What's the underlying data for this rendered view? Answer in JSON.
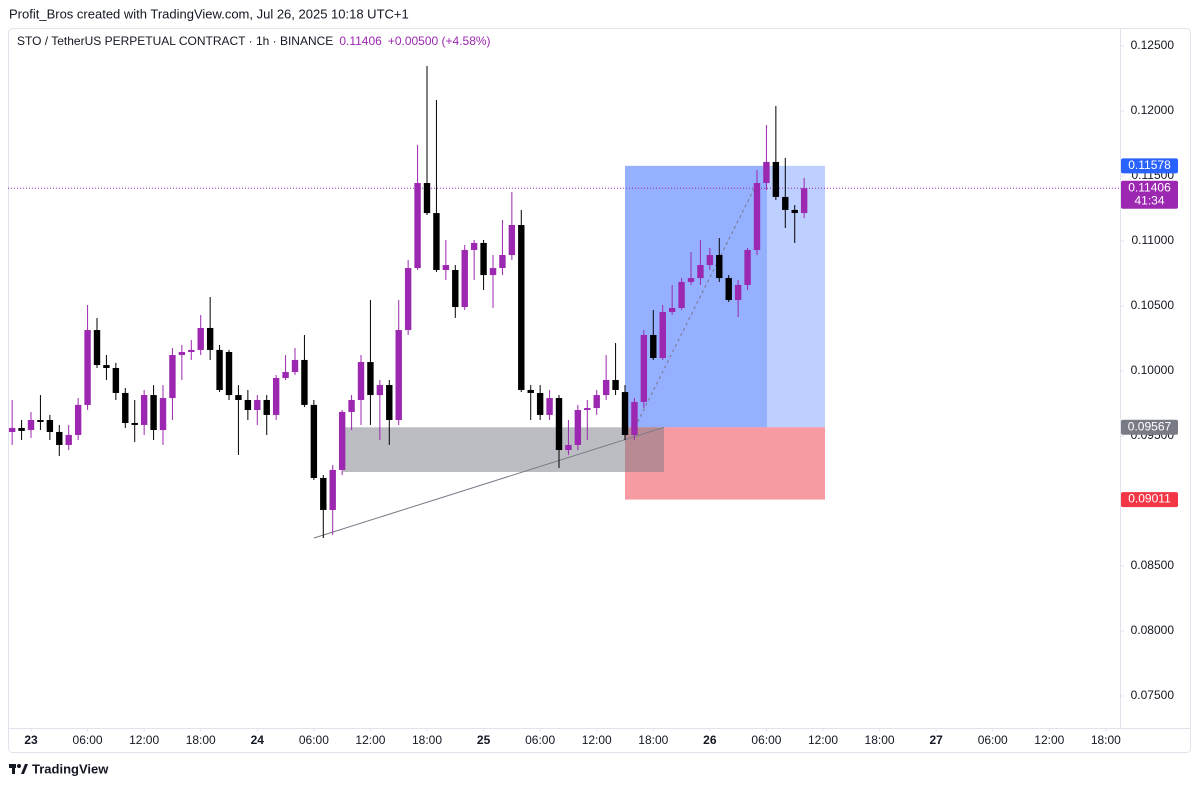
{
  "header": "Profit_Bros created with TradingView.com, Jul 26, 2025 10:18 UTC+1",
  "footer": "TradingView",
  "chart_data": {
    "type": "candlestick",
    "title": "STO / TetherUS PERPETUAL CONTRACT · 1h · BINANCE",
    "last_price": "0.11406",
    "change": "+0.00500 (+4.58%)",
    "up_color": "#9c27b0",
    "down_color": "#000000",
    "x": [
      -2,
      -1,
      0,
      1,
      2,
      3,
      4,
      5,
      6,
      7,
      8,
      9,
      10,
      11,
      12,
      13,
      14,
      15,
      16,
      17,
      18,
      19,
      20,
      21,
      22,
      23,
      24,
      25,
      26,
      27,
      28,
      29,
      30,
      31,
      32,
      33,
      34,
      35,
      36,
      37,
      38,
      39,
      40,
      41,
      42,
      43,
      44,
      45,
      46,
      47,
      48,
      49,
      50,
      51,
      52,
      53,
      54,
      55,
      56,
      57,
      58,
      59,
      60,
      61,
      62,
      63,
      64,
      65,
      66,
      67,
      68,
      69,
      70,
      71,
      72,
      73,
      74,
      75,
      76,
      77,
      78,
      79,
      80,
      81,
      82
    ],
    "open": [
      0.09531,
      0.09562,
      0.09546,
      0.09623,
      0.09623,
      0.09531,
      0.09431,
      0.09508,
      0.09739,
      0.10315,
      0.10046,
      0.10023,
      0.09831,
      0.096,
      0.09585,
      0.09815,
      0.09546,
      0.09792,
      0.10123,
      0.10146,
      0.10162,
      0.10331,
      0.10162,
      0.10146,
      0.09815,
      0.09777,
      0.097,
      0.09777,
      0.09662,
      0.09946,
      0.09992,
      0.10085,
      0.09739,
      0.09177,
      0.08931,
      0.09239,
      0.09685,
      0.09777,
      0.10069,
      0.09815,
      0.09892,
      0.09623,
      0.10315,
      0.10792,
      0.11446,
      0.11215,
      0.10777,
      0.10777,
      0.10492,
      0.10931,
      0.10985,
      0.10738,
      0.10792,
      0.10892,
      0.11123,
      0.09854,
      0.09831,
      0.09662,
      0.09792,
      0.09392,
      0.09431,
      0.097,
      0.09715,
      0.09815,
      0.09931,
      0.09838,
      0.09508,
      0.09762,
      0.10277,
      0.101,
      0.10454,
      0.10485,
      0.10685,
      0.10715,
      0.10815,
      0.10892,
      0.10715,
      0.10546,
      0.10662,
      0.10931,
      0.11446,
      0.11608,
      0.11339,
      0.11239,
      0.11215
    ],
    "high": [
      0.09777,
      0.09623,
      0.09685,
      0.09815,
      0.09662,
      0.09585,
      0.09585,
      0.09792,
      0.10508,
      0.10408,
      0.10123,
      0.10062,
      0.09869,
      0.09777,
      0.09854,
      0.09892,
      0.09892,
      0.10177,
      0.102,
      0.10238,
      0.10431,
      0.10569,
      0.102,
      0.10162,
      0.09892,
      0.09854,
      0.09815,
      0.09815,
      0.09969,
      0.10123,
      0.10177,
      0.10277,
      0.09777,
      0.092,
      0.09277,
      0.097,
      0.09815,
      0.10123,
      0.10546,
      0.09931,
      0.09931,
      0.10546,
      0.10854,
      0.11739,
      0.12346,
      0.12085,
      0.11008,
      0.10815,
      0.10969,
      0.11008,
      0.11008,
      0.10892,
      0.11162,
      0.11377,
      0.11239,
      0.09892,
      0.09892,
      0.09854,
      0.09815,
      0.09623,
      0.09739,
      0.09777,
      0.09854,
      0.10123,
      0.10215,
      0.09892,
      0.09792,
      0.10315,
      0.10469,
      0.10508,
      0.10662,
      0.10715,
      0.10915,
      0.11008,
      0.10946,
      0.11023,
      0.10738,
      0.107,
      0.10946,
      0.11546,
      0.11892,
      0.12039,
      0.11639,
      0.11277,
      0.11485
    ],
    "low": [
      0.09431,
      0.09469,
      0.09485,
      0.09546,
      0.09469,
      0.09346,
      0.09392,
      0.09469,
      0.097,
      0.10023,
      0.09931,
      0.09777,
      0.09562,
      0.09454,
      0.09508,
      0.09469,
      0.09431,
      0.09623,
      0.09931,
      0.10085,
      0.10123,
      0.10085,
      0.09838,
      0.09777,
      0.09354,
      0.09623,
      0.09585,
      0.09508,
      0.09623,
      0.09931,
      0.09969,
      0.09723,
      0.09162,
      0.08715,
      0.08739,
      0.092,
      0.09546,
      0.09585,
      0.09585,
      0.09469,
      0.09431,
      0.09585,
      0.10277,
      0.10777,
      0.112,
      0.10762,
      0.107,
      0.10408,
      0.10469,
      0.107,
      0.10623,
      0.10485,
      0.10738,
      0.10854,
      0.09838,
      0.09623,
      0.09623,
      0.09623,
      0.09254,
      0.09354,
      0.09392,
      0.09469,
      0.09662,
      0.09777,
      0.09815,
      0.09469,
      0.09469,
      0.09715,
      0.10085,
      0.10085,
      0.10431,
      0.10469,
      0.10662,
      0.10662,
      0.10777,
      0.10685,
      0.10531,
      0.10415,
      0.10623,
      0.10892,
      0.11392,
      0.11316,
      0.111,
      0.10985,
      0.11177
    ],
    "close": [
      0.09562,
      0.09539,
      0.09623,
      0.09608,
      0.09531,
      0.09431,
      0.09508,
      0.09739,
      0.10315,
      0.10046,
      0.10023,
      0.09831,
      0.096,
      0.09585,
      0.09815,
      0.09546,
      0.09792,
      0.10123,
      0.10146,
      0.10162,
      0.10331,
      0.10162,
      0.09854,
      0.09815,
      0.09777,
      0.097,
      0.09777,
      0.09662,
      0.09946,
      0.09992,
      0.10085,
      0.09739,
      0.09177,
      0.08931,
      0.09239,
      0.09685,
      0.09777,
      0.10069,
      0.09815,
      0.09892,
      0.09623,
      0.10315,
      0.10792,
      0.11446,
      0.11215,
      0.10777,
      0.10815,
      0.10492,
      0.10931,
      0.10985,
      0.10738,
      0.10792,
      0.10892,
      0.11123,
      0.09854,
      0.09831,
      0.09662,
      0.09792,
      0.09392,
      0.09431,
      0.097,
      0.09715,
      0.09815,
      0.09931,
      0.09854,
      0.09508,
      0.09762,
      0.10277,
      0.101,
      0.10454,
      0.10485,
      0.10685,
      0.10715,
      0.10815,
      0.10892,
      0.10715,
      0.10546,
      0.10662,
      0.10931,
      0.11446,
      0.11608,
      0.11339,
      0.11239,
      0.11215,
      0.11406
    ],
    "xlim": [
      -2.44,
      115.5
    ],
    "xticks": [
      {
        "value": 0,
        "label": "23"
      },
      {
        "value": 6,
        "label": "06:00"
      },
      {
        "value": 12,
        "label": "12:00"
      },
      {
        "value": 18,
        "label": "18:00"
      },
      {
        "value": 24,
        "label": "24"
      },
      {
        "value": 30,
        "label": "06:00"
      },
      {
        "value": 36,
        "label": "12:00"
      },
      {
        "value": 42,
        "label": "18:00"
      },
      {
        "value": 48,
        "label": "25"
      },
      {
        "value": 54,
        "label": "06:00"
      },
      {
        "value": 60,
        "label": "12:00"
      },
      {
        "value": 66,
        "label": "18:00"
      },
      {
        "value": 72,
        "label": "26"
      },
      {
        "value": 78,
        "label": "06:00"
      },
      {
        "value": 84,
        "label": "12:00"
      },
      {
        "value": 90,
        "label": "18:00"
      },
      {
        "value": 96,
        "label": "27"
      },
      {
        "value": 102,
        "label": "06:00"
      },
      {
        "value": 108,
        "label": "12:00"
      },
      {
        "value": 114,
        "label": "18:00"
      }
    ],
    "ylim": [
      0.0725,
      0.1264
    ],
    "yticks": [
      {
        "value": 0.075,
        "label": "0.07500"
      },
      {
        "value": 0.08,
        "label": "0.08000"
      },
      {
        "value": 0.085,
        "label": "0.08500"
      },
      {
        "value": 0.09,
        "label": "0.09000"
      },
      {
        "value": 0.095,
        "label": "0.09500"
      },
      {
        "value": 0.1,
        "label": "0.10000"
      },
      {
        "value": 0.105,
        "label": "0.10500"
      },
      {
        "value": 0.11,
        "label": "0.11000"
      },
      {
        "value": 0.115,
        "label": "0.11500"
      },
      {
        "value": 0.12,
        "label": "0.12000"
      },
      {
        "value": 0.125,
        "label": "0.12500"
      }
    ],
    "price_labels": [
      {
        "value": 0.11578,
        "label": "0.11578",
        "color": "#2962ff"
      },
      {
        "value": 0.11406,
        "label": "0.11406",
        "countdown": "41:34",
        "color": "#9c27b0"
      },
      {
        "value": 0.09567,
        "label": "0.09567",
        "color": "#787b86"
      },
      {
        "value": 0.09011,
        "label": "0.09011",
        "color": "#f23645"
      }
    ]
  }
}
